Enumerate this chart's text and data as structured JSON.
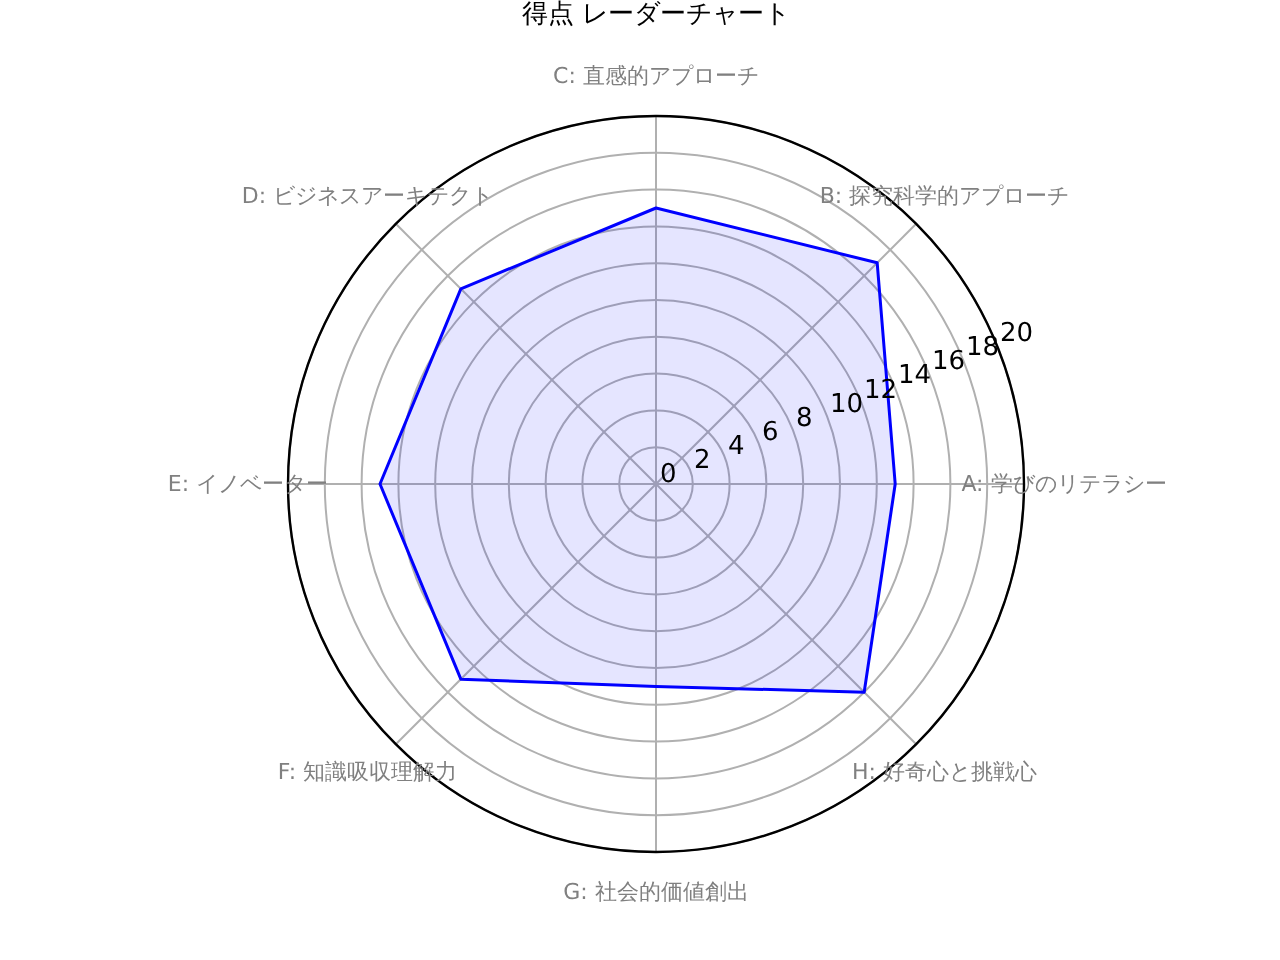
{
  "chart_data": {
    "type": "radar",
    "title": "得点 レーダーチャート",
    "categories": [
      "C: 直感的アプローチ",
      "B: 探究科学的アプローチ",
      "A: 学びのリテラシー",
      "H: 好奇心と挑戦心",
      "G: 社会的価値創出",
      "F: 知識吸収理解力",
      "E: イノベーター",
      "D: ビジネスアーキテクト"
    ],
    "series": [
      {
        "color": "#0000ff",
        "values": [
          15,
          17,
          13,
          16,
          11,
          15,
          15,
          15
        ]
      }
    ],
    "ylim": [
      0,
      20
    ],
    "yticks": [
      0,
      2,
      4,
      6,
      8,
      10,
      12,
      14,
      16,
      18,
      20
    ],
    "grid": true
  }
}
